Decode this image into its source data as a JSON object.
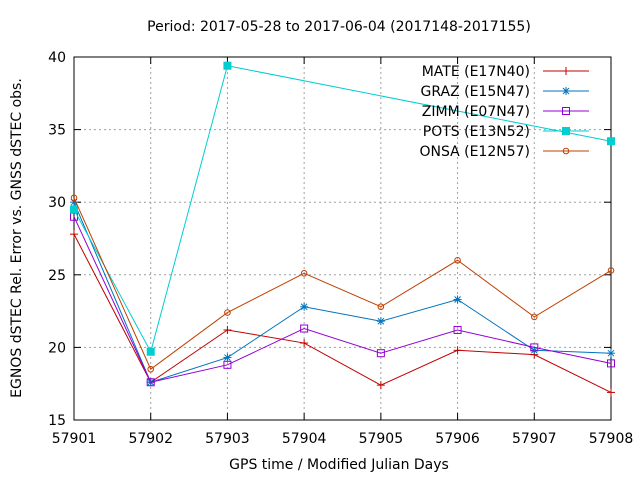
{
  "chart_data": {
    "type": "line",
    "title": "Period: 2017-05-28 to 2017-06-04 (2017148-2017155)",
    "xlabel": "GPS time / Modified Julian Days",
    "ylabel": "EGNOS dSTEC Rel. Error vs. GNSS dSTEC obs.",
    "x": [
      57901,
      57902,
      57903,
      57904,
      57905,
      57906,
      57907,
      57908
    ],
    "xlim": [
      57901,
      57908
    ],
    "ylim": [
      15,
      40
    ],
    "yticks": [
      15,
      20,
      25,
      30,
      35,
      40
    ],
    "grid": true,
    "legend_position": "top-right",
    "series": [
      {
        "name": "MATE (E17N40)",
        "color": "#c00000",
        "marker": "plus",
        "values": [
          27.8,
          17.6,
          21.2,
          20.3,
          17.4,
          19.8,
          19.5,
          16.9
        ]
      },
      {
        "name": "GRAZ (E15N47)",
        "color": "#0072bd",
        "marker": "star",
        "values": [
          30.0,
          17.6,
          19.3,
          22.8,
          21.8,
          23.3,
          19.8,
          19.6
        ]
      },
      {
        "name": "ZIMM (E07N47)",
        "color": "#9400d3",
        "marker": "square-open",
        "values": [
          29.0,
          17.6,
          18.8,
          21.3,
          19.6,
          21.2,
          20.0,
          18.9
        ]
      },
      {
        "name": "POTS (E13N52)",
        "color": "#00ced1",
        "marker": "square-filled",
        "values": [
          29.5,
          19.7,
          39.4,
          null,
          null,
          null,
          null,
          34.2
        ]
      },
      {
        "name": "ONSA (E12N57)",
        "color": "#c04000",
        "marker": "circle-open",
        "values": [
          30.3,
          18.5,
          22.4,
          25.1,
          22.8,
          26.0,
          22.1,
          25.3
        ]
      }
    ]
  }
}
